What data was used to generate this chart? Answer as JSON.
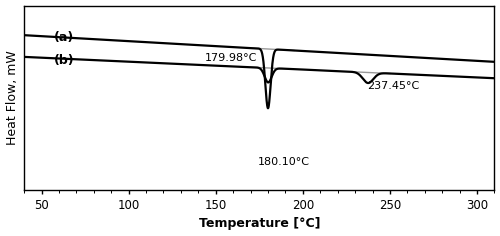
{
  "xlabel": "Temperature [°C]",
  "ylabel": "Heat Flow, mW",
  "xlim": [
    40,
    310
  ],
  "xticks": [
    50,
    100,
    150,
    200,
    250,
    300
  ],
  "ylim": [
    -1.6,
    1.2
  ],
  "label_a": "(a)",
  "label_b": "(b)",
  "annotation_1": "179.98°C",
  "annotation_2": "180.10°C",
  "annotation_3": "237.45°C",
  "background_color": "#ffffff",
  "line_color": "#000000",
  "line_color_gray": "#999999",
  "fontsize_label": 9,
  "fontsize_annot": 8,
  "figsize": [
    5.0,
    2.36
  ],
  "dpi": 100
}
